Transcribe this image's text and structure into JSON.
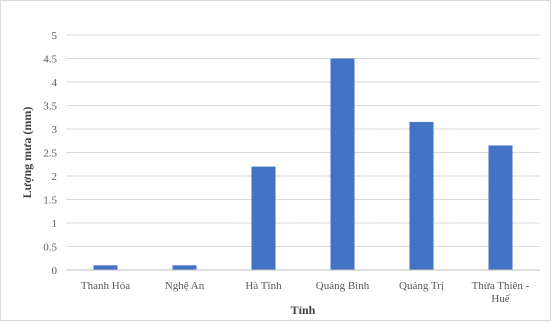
{
  "chart_data": {
    "type": "bar",
    "title": "",
    "xlabel": "Tỉnh",
    "ylabel": "Lượng mưa (mm)",
    "categories": [
      [
        "Thanh Hóa"
      ],
      [
        "Nghệ An"
      ],
      [
        "Hà Tĩnh"
      ],
      [
        "Quảng Bình"
      ],
      [
        "Quảng Trị"
      ],
      [
        "Thừa Thiên -",
        "Huế"
      ]
    ],
    "values": [
      0.1,
      0.1,
      2.2,
      4.5,
      3.15,
      2.65
    ],
    "ylim": [
      0,
      5
    ],
    "yticks": [
      "0",
      "0.5",
      "1",
      "1.5",
      "2",
      "2.5",
      "3",
      "3.5",
      "4",
      "4.5",
      "5"
    ],
    "grid": true,
    "legend": "none",
    "colors": {
      "bar": "#4472c4",
      "grid": "#d9d9d9",
      "axis": "#bfbfbf",
      "text": "#595959"
    }
  }
}
